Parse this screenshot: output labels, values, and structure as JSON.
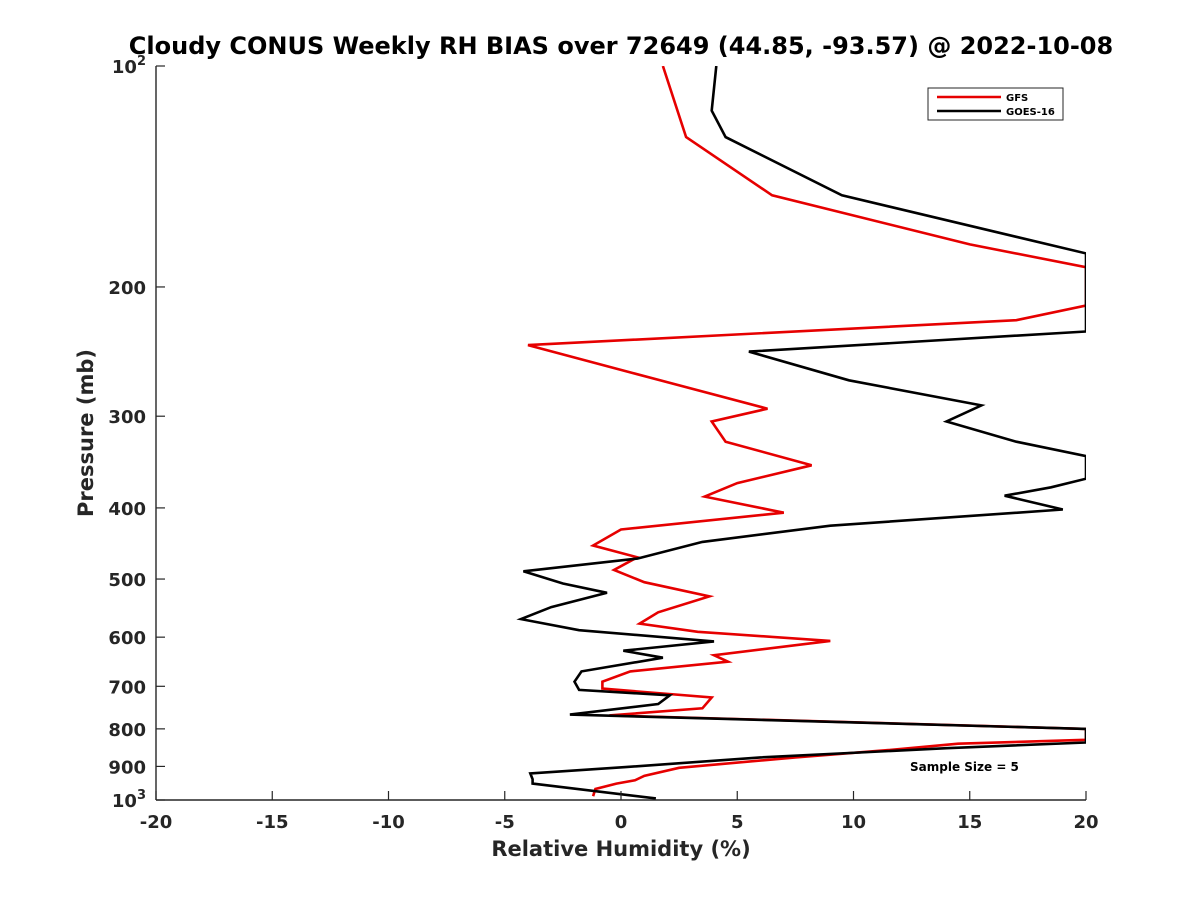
{
  "chart_data": {
    "type": "line",
    "title": "Cloudy CONUS Weekly RH BIAS over 72649 (44.85, -93.57) @ 2022-10-08",
    "xlabel": "Relative Humidity (%)",
    "ylabel": "Pressure (mb)",
    "xlim": [
      -20,
      20
    ],
    "ylim": [
      100,
      1000
    ],
    "y_scale": "log",
    "y_reversed": true,
    "xticks": [
      -20,
      -15,
      -10,
      -5,
      0,
      5,
      10,
      15,
      20
    ],
    "xtick_labels": [
      "-20",
      "-15",
      "-10",
      "-5",
      "0",
      "5",
      "10",
      "15",
      "20"
    ],
    "yticks": [
      200,
      300,
      400,
      500,
      600,
      700,
      800,
      900
    ],
    "ytick_labels": [
      "200",
      "300",
      "400",
      "500",
      "600",
      "700",
      "800",
      "900"
    ],
    "y_limit_labels": [
      {
        "value": 100,
        "base": "10",
        "exp": "2"
      },
      {
        "value": 1000,
        "base": "10",
        "exp": "3"
      }
    ],
    "grid": false,
    "legend_position": "top-right",
    "annotation": "Sample Size = 5",
    "series": [
      {
        "name": "GFS",
        "color": "#e60000",
        "points": [
          [
            1.8,
            100
          ],
          [
            2.8,
            125
          ],
          [
            6.5,
            150
          ],
          [
            15,
            175
          ],
          [
            20,
            188
          ],
          [
            20,
            200
          ],
          [
            20,
            212
          ],
          [
            17,
            222
          ],
          [
            -4,
            240
          ],
          [
            0.5,
            262
          ],
          [
            6.3,
            293
          ],
          [
            3.9,
            305
          ],
          [
            4.5,
            325
          ],
          [
            8.2,
            350
          ],
          [
            5.0,
            370
          ],
          [
            3.6,
            386
          ],
          [
            7.0,
            406
          ],
          [
            0.0,
            428
          ],
          [
            -1.2,
            450
          ],
          [
            0.7,
            467
          ],
          [
            -0.3,
            486
          ],
          [
            1.0,
            505
          ],
          [
            3.8,
            528
          ],
          [
            1.6,
            555
          ],
          [
            0.8,
            575
          ],
          [
            3.3,
            590
          ],
          [
            9.0,
            607
          ],
          [
            4.0,
            635
          ],
          [
            4.6,
            648
          ],
          [
            0.4,
            668
          ],
          [
            -0.8,
            690
          ],
          [
            -0.8,
            705
          ],
          [
            3.9,
            725
          ],
          [
            3.5,
            750
          ],
          [
            -0.5,
            767
          ],
          [
            20,
            800
          ],
          [
            20,
            828
          ],
          [
            14.5,
            838
          ],
          [
            11.5,
            855
          ],
          [
            7.5,
            875
          ],
          [
            2.5,
            904
          ],
          [
            1.0,
            927
          ],
          [
            0.6,
            940
          ],
          [
            -0.2,
            950
          ],
          [
            -1.1,
            966
          ],
          [
            -1.2,
            988
          ]
        ]
      },
      {
        "name": "GOES-16",
        "color": "#000000",
        "points": [
          [
            4.1,
            100
          ],
          [
            3.9,
            115
          ],
          [
            4.5,
            125
          ],
          [
            9.5,
            150
          ],
          [
            20,
            180
          ],
          [
            20,
            200
          ],
          [
            20,
            230
          ],
          [
            5.5,
            245
          ],
          [
            9.8,
            268
          ],
          [
            15.5,
            290
          ],
          [
            14.0,
            305
          ],
          [
            17.0,
            325
          ],
          [
            20,
            340
          ],
          [
            20,
            365
          ],
          [
            18.5,
            375
          ],
          [
            16.5,
            385
          ],
          [
            19.0,
            402
          ],
          [
            9.0,
            423
          ],
          [
            3.5,
            445
          ],
          [
            0.7,
            469
          ],
          [
            -4.2,
            488
          ],
          [
            -2.5,
            507
          ],
          [
            -0.6,
            522
          ],
          [
            -3.0,
            546
          ],
          [
            -4.3,
            567
          ],
          [
            -1.8,
            587
          ],
          [
            4.0,
            608
          ],
          [
            0.1,
            626
          ],
          [
            1.8,
            640
          ],
          [
            -1.7,
            668
          ],
          [
            -2.0,
            690
          ],
          [
            -1.8,
            708
          ],
          [
            2.1,
            720
          ],
          [
            1.6,
            740
          ],
          [
            -2.2,
            765
          ],
          [
            20,
            800
          ],
          [
            20,
            835
          ],
          [
            14.0,
            850
          ],
          [
            6.0,
            875
          ],
          [
            0.2,
            902
          ],
          [
            -3.9,
            920
          ],
          [
            -3.8,
            937
          ],
          [
            -3.8,
            950
          ],
          [
            1.5,
            995
          ]
        ]
      }
    ]
  }
}
